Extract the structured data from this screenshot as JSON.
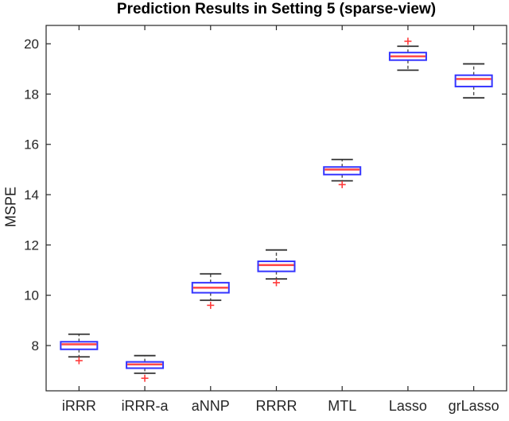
{
  "chart_data": {
    "type": "boxplot",
    "title": "Prediction Results in Setting 5 (sparse-view)",
    "ylabel": "MSPE",
    "xlabel": "",
    "categories": [
      "iRRR",
      "iRRR-a",
      "aNNP",
      "RRRR",
      "MTL",
      "Lasso",
      "grLasso"
    ],
    "yticks": [
      8,
      10,
      12,
      14,
      16,
      18,
      20
    ],
    "ylim": [
      6.2,
      20.73
    ],
    "grid": false,
    "legend": null,
    "boxes": [
      {
        "category": "iRRR",
        "whisker_low": 7.55,
        "q1": 7.85,
        "median": 8.05,
        "q3": 8.15,
        "whisker_high": 8.45,
        "outliers": [
          7.4
        ]
      },
      {
        "category": "iRRR-a",
        "whisker_low": 6.9,
        "q1": 7.1,
        "median": 7.25,
        "q3": 7.35,
        "whisker_high": 7.6,
        "outliers": [
          6.7
        ]
      },
      {
        "category": "aNNP",
        "whisker_low": 9.8,
        "q1": 10.1,
        "median": 10.3,
        "q3": 10.5,
        "whisker_high": 10.85,
        "outliers": [
          9.6
        ]
      },
      {
        "category": "RRRR",
        "whisker_low": 10.65,
        "q1": 10.95,
        "median": 11.2,
        "q3": 11.35,
        "whisker_high": 11.8,
        "outliers": [
          10.5
        ]
      },
      {
        "category": "MTL",
        "whisker_low": 14.55,
        "q1": 14.8,
        "median": 15.0,
        "q3": 15.1,
        "whisker_high": 15.4,
        "outliers": [
          14.4
        ]
      },
      {
        "category": "Lasso",
        "whisker_low": 18.95,
        "q1": 19.35,
        "median": 19.5,
        "q3": 19.65,
        "whisker_high": 19.9,
        "outliers": [
          20.1
        ]
      },
      {
        "category": "grLasso",
        "whisker_low": 17.85,
        "q1": 18.3,
        "median": 18.6,
        "q3": 18.75,
        "whisker_high": 19.2,
        "outliers": []
      }
    ],
    "colors": {
      "box_edge": "#3434ff",
      "median": "#ff4a4a",
      "whisker": "#4d4d4d",
      "whisker_cap": "#333333",
      "outlier": "#ff3b3b",
      "axis": "#262626",
      "tick_label": "#262626",
      "title_color": "#000000",
      "background": "#ffffff"
    }
  }
}
